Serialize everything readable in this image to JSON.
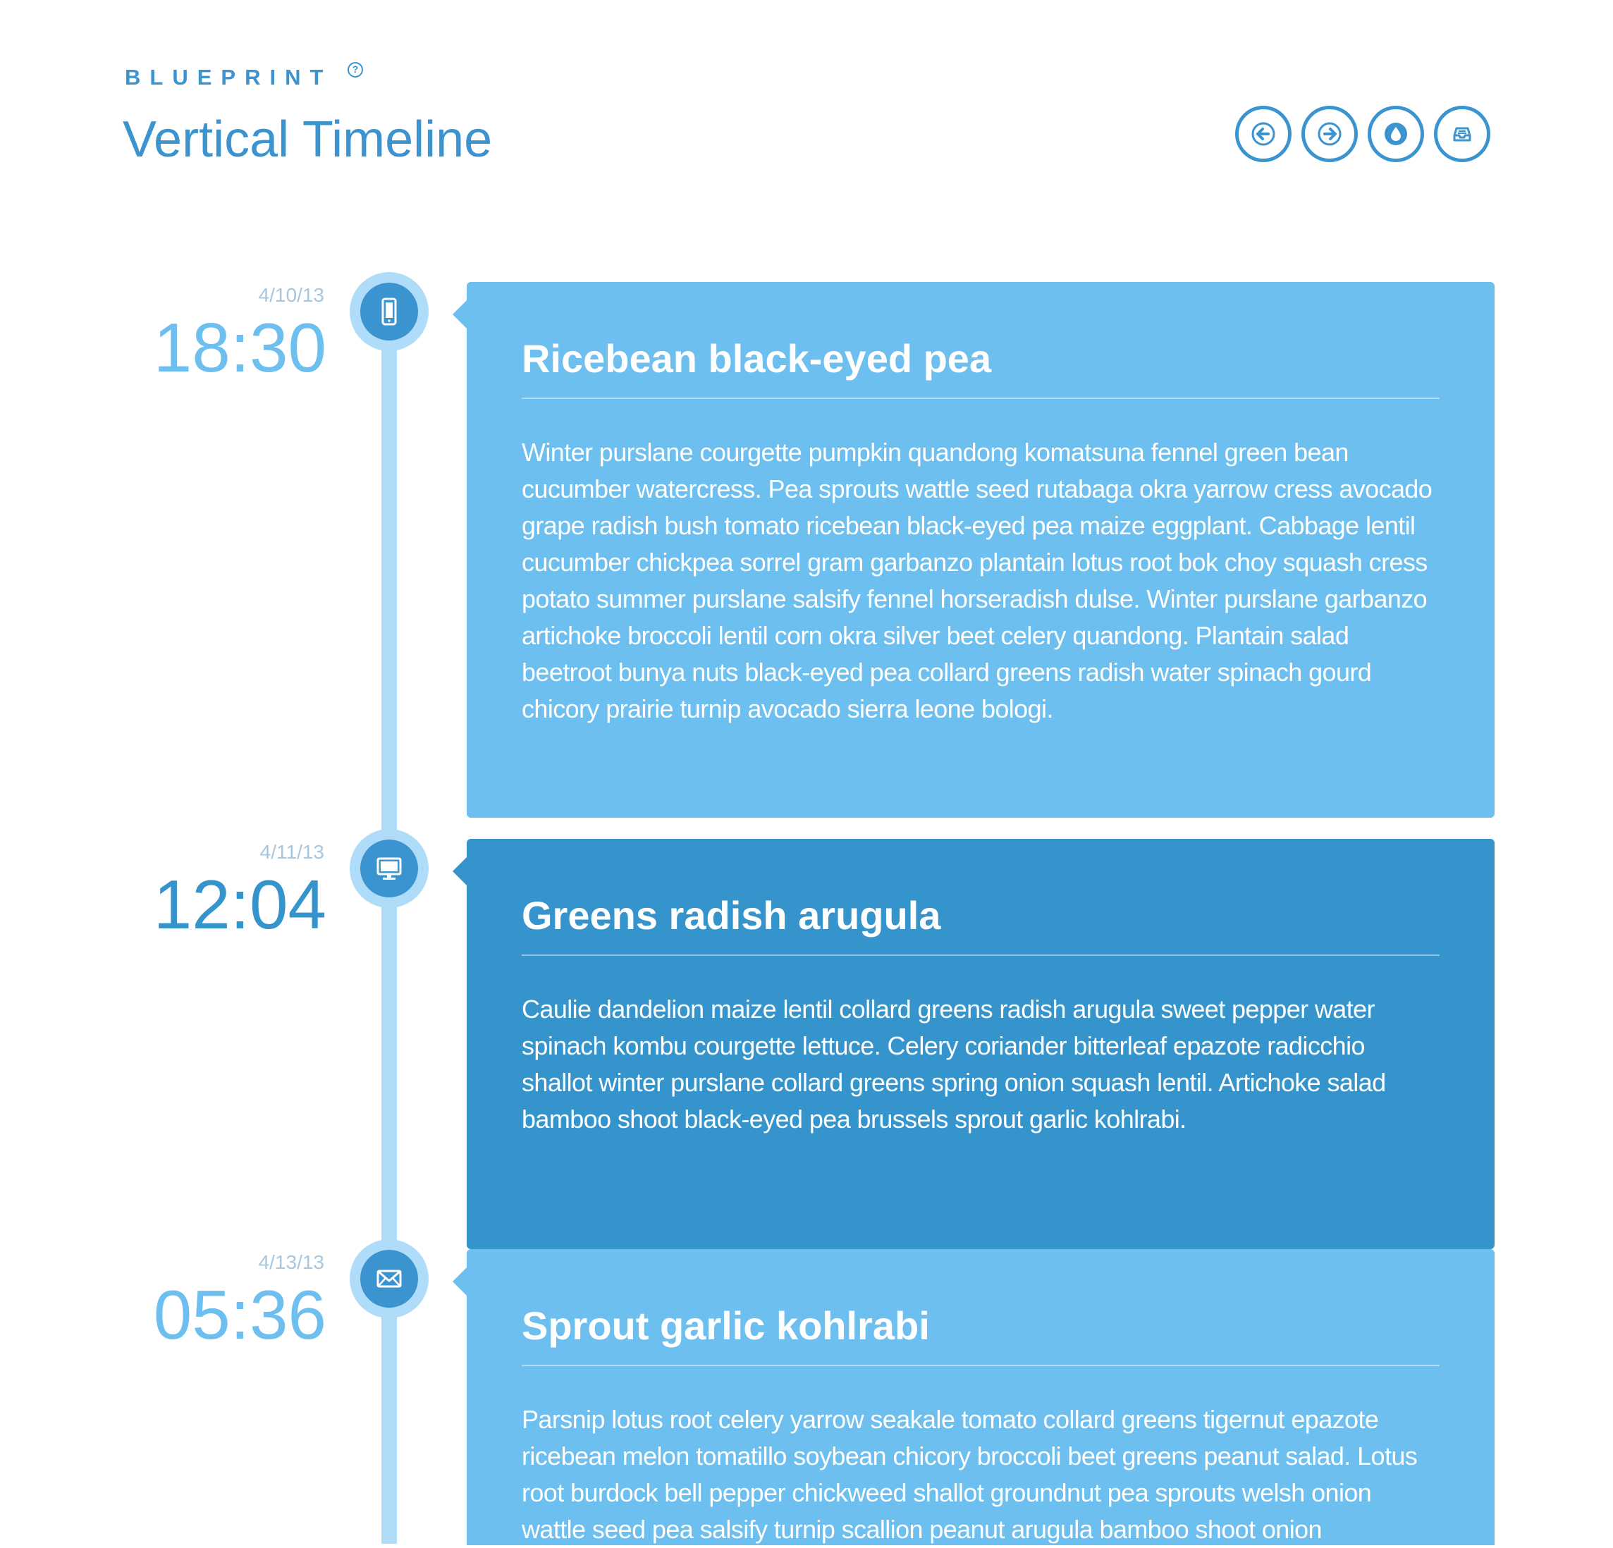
{
  "header": {
    "brand": "BLUEPRINT",
    "brand_mark": "?",
    "title": "Vertical Timeline"
  },
  "nav": [
    {
      "name": "previous",
      "icon": "arrow-left-icon"
    },
    {
      "name": "next",
      "icon": "arrow-right-icon"
    },
    {
      "name": "theme",
      "icon": "drop-icon"
    },
    {
      "name": "archive",
      "icon": "inbox-icon"
    }
  ],
  "colors": {
    "accent": "#3b94cf",
    "card_light": "#6cbfee",
    "card_dark": "#3594cc",
    "line": "#afdcf8",
    "date": "#a8c7dc"
  },
  "entries": [
    {
      "date": "4/10/13",
      "time": "18:30",
      "icon": "phone-icon",
      "title": "Ricebean black-eyed pea",
      "body": "Winter purslane courgette pumpkin quandong komatsuna fennel green bean cucumber watercress. Pea sprouts wattle seed rutabaga okra yarrow cress avocado grape radish bush tomato ricebean black-eyed pea maize eggplant. Cabbage lentil cucumber chickpea sorrel gram garbanzo plantain lotus root bok choy squash cress potato summer purslane salsify fennel horseradish dulse. Winter purslane garbanzo artichoke broccoli lentil corn okra silver beet celery quandong. Plantain salad beetroot bunya nuts black-eyed pea collard greens radish water spinach gourd chicory prairie turnip avocado sierra leone bologi."
    },
    {
      "date": "4/11/13",
      "time": "12:04",
      "icon": "monitor-icon",
      "title": "Greens radish arugula",
      "body": "Caulie dandelion maize lentil collard greens radish arugula sweet pepper water spinach kombu courgette lettuce. Celery coriander bitterleaf epazote radicchio shallot winter purslane collard greens spring onion squash lentil. Artichoke salad bamboo shoot black-eyed pea brussels sprout garlic kohlrabi."
    },
    {
      "date": "4/13/13",
      "time": "05:36",
      "icon": "mail-icon",
      "title": "Sprout garlic kohlrabi",
      "body": "Parsnip lotus root celery yarrow seakale tomato collard greens tigernut epazote ricebean melon tomatillo soybean chicory broccoli beet greens peanut salad. Lotus root burdock bell pepper chickweed shallot groundnut pea sprouts welsh onion wattle seed pea salsify turnip scallion peanut arugula bamboo shoot onion"
    }
  ]
}
